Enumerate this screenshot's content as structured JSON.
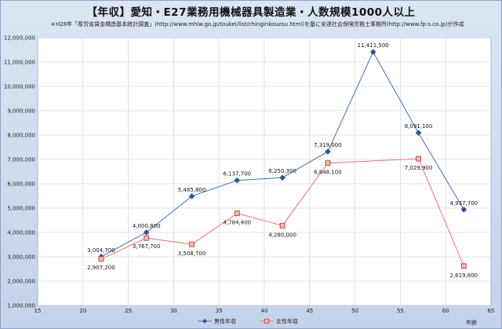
{
  "chart_data": {
    "type": "line",
    "title": "【年収】愛知・E27業務用機械器具製造業・人数規模1000人以上",
    "subtitle": "＊H28年「厚労省賃金構造基本統計調査」(http://www.mhlw.go.jp/toukei/list/chinginkouzou.html)を基に安達社会保険労務士事務所(http://www.fp-s.co.jp)が作成",
    "xlabel": "年齢",
    "ylabel": "",
    "xlim": [
      15,
      65
    ],
    "ylim": [
      1000000,
      12000000
    ],
    "x_ticks": [
      "15",
      "20",
      "25",
      "30",
      "35",
      "40",
      "45",
      "50",
      "55",
      "60",
      "65"
    ],
    "y_ticks": [
      "1,000,000",
      "2,000,000",
      "3,000,000",
      "4,000,000",
      "5,000,000",
      "6,000,000",
      "7,000,000",
      "8,000,000",
      "9,000,000",
      "10,000,000",
      "11,000,000",
      "12,000,000"
    ],
    "grid": true,
    "legend_position": "bottom",
    "series": [
      {
        "name": "男性年収",
        "color": "#4a6eb0",
        "marker": "diamond",
        "points": [
          {
            "x": 22,
            "y": 3004700,
            "label": "3,004,700"
          },
          {
            "x": 27,
            "y": 4000800,
            "label": "4,000,800"
          },
          {
            "x": 32,
            "y": 5485800,
            "label": "5,485,800"
          },
          {
            "x": 37,
            "y": 6137700,
            "label": "6,137,700"
          },
          {
            "x": 42,
            "y": 6250300,
            "label": "6,250,300"
          },
          {
            "x": 47,
            "y": 7319000,
            "label": "7,319,000"
          },
          {
            "x": 52,
            "y": 11411500,
            "label": "11,411,500"
          },
          {
            "x": 57,
            "y": 8091100,
            "label": "8,091,100"
          },
          {
            "x": 62,
            "y": 4937700,
            "label": "4,937,700"
          }
        ]
      },
      {
        "name": "女性年収",
        "color": "#e07575",
        "marker": "square",
        "points": [
          {
            "x": 22,
            "y": 2907200,
            "label": "2,907,200"
          },
          {
            "x": 27,
            "y": 3767700,
            "label": "3,767,700"
          },
          {
            "x": 32,
            "y": 3508700,
            "label": "3,508,700"
          },
          {
            "x": 37,
            "y": 4784400,
            "label": "4,784,400"
          },
          {
            "x": 42,
            "y": 4280000,
            "label": "4,280,000"
          },
          {
            "x": 47,
            "y": 6848100,
            "label": "6,848,100"
          },
          {
            "x": 57,
            "y": 7029900,
            "label": "7,029,900"
          },
          {
            "x": 62,
            "y": 2619600,
            "label": "2,619,600"
          }
        ]
      }
    ]
  }
}
